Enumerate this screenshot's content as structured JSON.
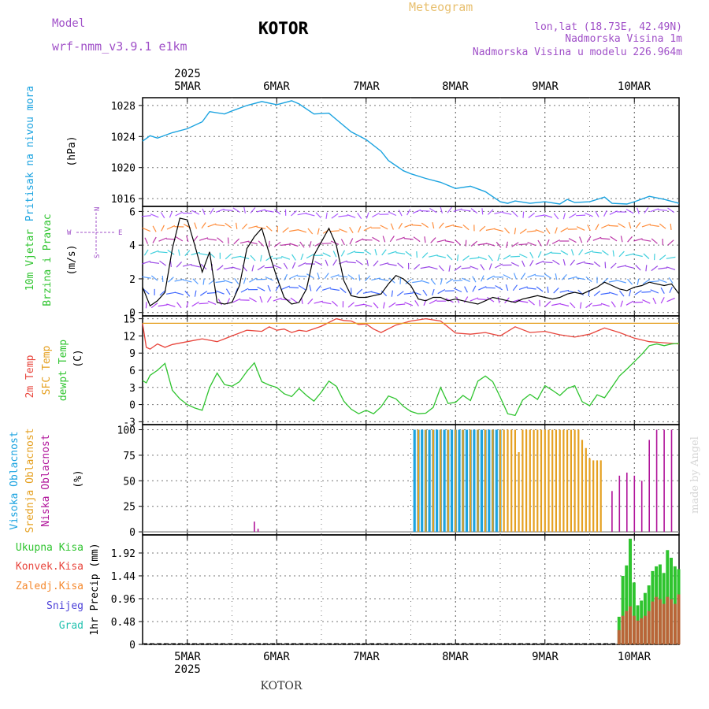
{
  "header": {
    "model_label": "Model",
    "model_name": "wrf-nmm_v3.9.1 e1km",
    "location": "KOTOR",
    "meteogram": "Meteogram",
    "coords": "lon,lat (18.73E, 42.49N)",
    "elevation": "Nadmorska Visina 1m",
    "model_elevation": "Nadmorska Visina u modelu 226.964m",
    "bottom_location": "KOTOR",
    "credit": "made by Angel"
  },
  "colors": {
    "pressure": "#1ba3e0",
    "temp2m": "#e8453c",
    "sfc_temp": "#e5a020",
    "dewpt": "#2fc42f",
    "high_cloud": "#1ba3e0",
    "mid_cloud": "#e5a020",
    "low_cloud": "#b0139a",
    "total_precip": "#2fc42f",
    "conv_precip": "#e8453c",
    "frozen": "#f58a30",
    "snow": "#4a3fd8",
    "hail": "#25c2b0",
    "wind_label": "#2fc42f",
    "model_text": "#a050c8"
  },
  "time_axis": {
    "year": "2025",
    "days": [
      "5MAR",
      "6MAR",
      "7MAR",
      "8MAR",
      "9MAR",
      "10MAR"
    ],
    "start_hour_offset": -12,
    "end_hour_offset": 132
  },
  "chart_data": [
    {
      "type": "line",
      "panel": "pressure",
      "ylabel_lines": [
        "Pritisak na nivou mora"
      ],
      "unit": "(hPa)",
      "yticks": [
        1016,
        1020,
        1024,
        1028
      ],
      "ylim": [
        1015,
        1029
      ],
      "grid": true,
      "series": [
        {
          "x": [
            -12,
            -10,
            -8,
            -4,
            0,
            4,
            6,
            10,
            12,
            16,
            20,
            24,
            28,
            30,
            34,
            38,
            40,
            44,
            48,
            52,
            54,
            58,
            60,
            64,
            68,
            72,
            76,
            80,
            84,
            86,
            88,
            92,
            96,
            100,
            102,
            104,
            108,
            112,
            114,
            118,
            120,
            124,
            128,
            132
          ],
          "values": [
            1023.4,
            1024.1,
            1023.8,
            1024.5,
            1025.0,
            1025.9,
            1027.2,
            1026.9,
            1027.3,
            1028.0,
            1028.5,
            1028.1,
            1028.6,
            1028.2,
            1026.9,
            1027.0,
            1026.2,
            1024.6,
            1023.6,
            1022.1,
            1020.9,
            1019.6,
            1019.2,
            1018.6,
            1018.1,
            1017.3,
            1017.6,
            1016.9,
            1015.6,
            1015.4,
            1015.7,
            1015.4,
            1015.6,
            1015.3,
            1015.9,
            1015.5,
            1015.6,
            1016.2,
            1015.4,
            1015.3,
            1015.6,
            1016.3,
            1015.9,
            1015.4
          ]
        }
      ]
    },
    {
      "type": "line",
      "panel": "wind",
      "ylabel_lines": [
        "10m Vjetar",
        "Brzina i Pravac"
      ],
      "unit": "(m/s)",
      "yticks": [
        0,
        2,
        4,
        6
      ],
      "ylim": [
        -0.2,
        6.3
      ],
      "grid": true,
      "compass": [
        "N",
        "S",
        "W",
        "E"
      ],
      "series": [
        {
          "name": "brzina",
          "x": [
            -12,
            -10,
            -8,
            -6,
            -4,
            -2,
            0,
            2,
            4,
            6,
            8,
            10,
            12,
            14,
            16,
            18,
            20,
            22,
            24,
            26,
            28,
            30,
            32,
            34,
            36,
            38,
            40,
            42,
            44,
            46,
            48,
            50,
            52,
            54,
            56,
            58,
            60,
            62,
            64,
            66,
            68,
            70,
            72,
            74,
            76,
            78,
            80,
            82,
            84,
            86,
            88,
            90,
            92,
            94,
            96,
            98,
            100,
            102,
            104,
            106,
            108,
            110,
            112,
            114,
            116,
            118,
            120,
            122,
            124,
            126,
            128,
            130,
            132
          ],
          "values": [
            1.5,
            0.4,
            0.7,
            1.2,
            3.8,
            5.6,
            5.5,
            4.0,
            2.4,
            3.6,
            0.6,
            0.5,
            0.6,
            1.6,
            3.8,
            4.5,
            5.0,
            3.5,
            2.1,
            0.9,
            0.5,
            0.6,
            1.4,
            3.4,
            4.2,
            5.0,
            4.0,
            1.9,
            1.0,
            0.9,
            0.9,
            1.0,
            1.1,
            1.7,
            2.2,
            2.0,
            1.6,
            0.8,
            0.7,
            0.9,
            0.9,
            0.7,
            0.8,
            0.7,
            0.6,
            0.5,
            0.7,
            0.9,
            0.8,
            0.7,
            0.6,
            0.8,
            0.9,
            1.0,
            0.9,
            0.8,
            0.9,
            1.1,
            1.2,
            1.1,
            1.3,
            1.5,
            1.8,
            1.6,
            1.4,
            1.3,
            1.5,
            1.6,
            1.8,
            1.7,
            1.6,
            1.7,
            1.1
          ]
        }
      ]
    },
    {
      "type": "line",
      "panel": "temperature",
      "ylabel_lines": [
        "2m Temp",
        "SFC Temp",
        "dewpt Temp"
      ],
      "unit": "(C)",
      "yticks": [
        -3,
        0,
        3,
        6,
        9,
        12,
        15
      ],
      "ylim": [
        -3.5,
        15.5
      ],
      "grid": true,
      "series": [
        {
          "name": "2m Temp",
          "x": [
            -12,
            -11,
            -10,
            -8,
            -6,
            -4,
            0,
            4,
            8,
            10,
            12,
            16,
            20,
            22,
            24,
            26,
            28,
            30,
            32,
            36,
            40,
            42,
            44,
            46,
            48,
            50,
            52,
            56,
            60,
            64,
            68,
            72,
            76,
            80,
            84,
            88,
            92,
            96,
            100,
            104,
            108,
            112,
            116,
            120,
            124,
            128,
            132
          ],
          "values": [
            14.2,
            10.0,
            9.7,
            10.6,
            10.0,
            10.5,
            11.0,
            11.5,
            11.0,
            11.5,
            12.0,
            13.0,
            12.8,
            13.6,
            13.0,
            13.2,
            12.6,
            13.0,
            12.8,
            13.7,
            15.0,
            14.7,
            14.6,
            14.0,
            14.1,
            13.2,
            12.6,
            13.9,
            14.6,
            15.0,
            14.6,
            12.5,
            12.3,
            12.6,
            12.0,
            13.6,
            12.6,
            12.8,
            12.2,
            11.8,
            12.3,
            13.4,
            12.6,
            11.6,
            11.0,
            10.8,
            10.6
          ]
        },
        {
          "name": "SFC Temp",
          "x": [
            -12,
            132
          ],
          "values": [
            14.2,
            14.2
          ]
        },
        {
          "name": "dewpt Temp",
          "x": [
            -12,
            -11,
            -10,
            -8,
            -6,
            -4,
            -2,
            0,
            2,
            4,
            6,
            8,
            10,
            12,
            14,
            16,
            18,
            20,
            22,
            24,
            26,
            28,
            30,
            32,
            34,
            36,
            38,
            40,
            42,
            44,
            46,
            48,
            50,
            52,
            54,
            56,
            58,
            60,
            62,
            64,
            66,
            68,
            70,
            72,
            74,
            76,
            78,
            80,
            82,
            84,
            86,
            88,
            90,
            92,
            94,
            96,
            98,
            100,
            102,
            104,
            106,
            108,
            110,
            112,
            114,
            116,
            118,
            120,
            122,
            124,
            126,
            128,
            130,
            132
          ],
          "values": [
            4.2,
            3.8,
            5.1,
            6.0,
            7.2,
            2.5,
            1.0,
            0.0,
            -0.6,
            -1.0,
            3.0,
            5.5,
            3.5,
            3.2,
            4.0,
            5.8,
            7.3,
            4.0,
            3.4,
            3.0,
            1.9,
            1.4,
            2.8,
            1.6,
            0.6,
            2.2,
            4.1,
            3.2,
            0.6,
            -0.8,
            -1.6,
            -1.0,
            -1.6,
            -0.4,
            1.5,
            1.0,
            -0.3,
            -1.2,
            -1.6,
            -1.5,
            -0.5,
            3.0,
            0.2,
            0.4,
            1.6,
            0.7,
            4.1,
            5.0,
            4.0,
            1.3,
            -1.6,
            -1.9,
            0.8,
            1.8,
            0.9,
            3.3,
            2.5,
            1.6,
            2.8,
            3.3,
            0.5,
            -0.2,
            1.7,
            1.2,
            3.1,
            5.0,
            6.2,
            7.5,
            8.8,
            10.3,
            10.6,
            10.3,
            10.6,
            10.7
          ]
        }
      ]
    },
    {
      "type": "bar",
      "panel": "cloud",
      "ylabel_lines": [
        "Visoka Oblacnost",
        "Srednja Oblacnost",
        "Niska Oblacnost"
      ],
      "unit": "(%)",
      "yticks": [
        0,
        25,
        50,
        75,
        100
      ],
      "ylim": [
        -3,
        105
      ],
      "grid": true,
      "series": [
        {
          "name": "Visoka Oblacnost",
          "x": [
            61,
            62,
            63,
            64,
            65,
            66,
            67,
            68,
            69,
            70,
            71,
            72,
            73,
            74,
            75,
            76,
            77,
            78,
            79,
            80,
            81,
            82,
            83,
            84
          ],
          "values": [
            100,
            100,
            100,
            100,
            100,
            100,
            100,
            100,
            100,
            100,
            100,
            100,
            100,
            100,
            100,
            100,
            100,
            100,
            100,
            100,
            100,
            100,
            100,
            100
          ]
        },
        {
          "name": "Srednja Oblacnost",
          "x": [
            62,
            64,
            66,
            68,
            70,
            72,
            74,
            76,
            78,
            80,
            82,
            84,
            85,
            86,
            87,
            88,
            89,
            90,
            91,
            92,
            93,
            94,
            95,
            96,
            97,
            98,
            99,
            100,
            101,
            102,
            103,
            104,
            105,
            106,
            107,
            108,
            109,
            110,
            111
          ],
          "values": [
            100,
            100,
            100,
            100,
            100,
            100,
            100,
            100,
            100,
            100,
            100,
            100,
            100,
            100,
            100,
            100,
            78,
            100,
            100,
            100,
            100,
            100,
            100,
            100,
            100,
            100,
            100,
            100,
            100,
            100,
            100,
            100,
            100,
            90,
            82,
            72,
            70,
            70,
            70
          ]
        },
        {
          "name": "Niska Oblacnost",
          "x": [
            18,
            19,
            114,
            116,
            118,
            120,
            122,
            124,
            126,
            128,
            130
          ],
          "values": [
            10,
            3,
            40,
            55,
            58,
            55,
            50,
            90,
            100,
            100,
            100
          ]
        }
      ]
    },
    {
      "type": "bar",
      "panel": "precip",
      "ylabel_lines": [
        "Ukupna Kisa",
        "Konvek.Kisa",
        "Zaledj.Kisa",
        "Snijeg",
        "Grad"
      ],
      "unit": "1hr Precip (mm)",
      "yticks": [
        0,
        0.48,
        0.96,
        1.44,
        1.92
      ],
      "ylim": [
        0,
        2.3
      ],
      "grid": true,
      "series": [
        {
          "name": "Ukupna Kisa",
          "x": [
            116,
            117,
            118,
            119,
            120,
            121,
            122,
            123,
            124,
            125,
            126,
            127,
            128,
            129,
            130,
            131,
            132
          ],
          "values": [
            0.58,
            1.44,
            1.66,
            2.22,
            1.3,
            0.82,
            0.92,
            1.08,
            1.24,
            1.54,
            1.64,
            1.68,
            1.5,
            1.98,
            1.82,
            1.64,
            1.58
          ]
        },
        {
          "name": "Konvek.Kisa",
          "x": [
            116,
            117,
            118,
            119,
            120,
            121,
            122,
            123,
            124,
            125,
            126,
            127,
            128,
            129,
            130,
            131,
            132
          ],
          "values": [
            0.3,
            0.6,
            0.7,
            0.8,
            0.6,
            0.5,
            0.55,
            0.6,
            0.7,
            0.9,
            1.0,
            0.95,
            0.85,
            1.0,
            0.95,
            0.85,
            1.05
          ]
        }
      ]
    }
  ]
}
